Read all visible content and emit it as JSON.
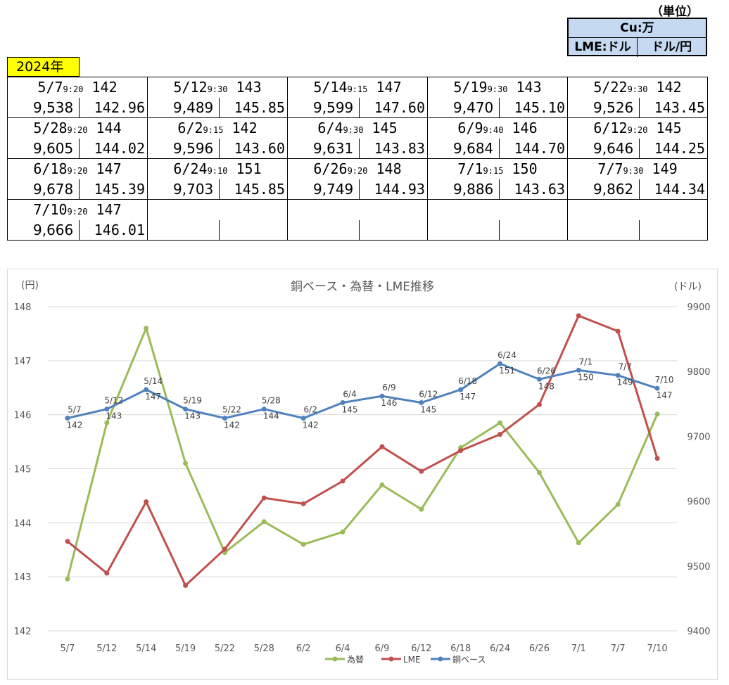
{
  "unit": {
    "label": "（単位）",
    "row1": "Cu:万",
    "lme": "LME:ドル",
    "fx": "ドル/円"
  },
  "year_badge": "2024年",
  "quotes": [
    {
      "date": "5/7",
      "time": "9:20",
      "base": "142",
      "lme": "9,538",
      "fx": "142.96"
    },
    {
      "date": "5/12",
      "time": "9:30",
      "base": "143",
      "lme": "9,489",
      "fx": "145.85"
    },
    {
      "date": "5/14",
      "time": "9:15",
      "base": "147",
      "lme": "9,599",
      "fx": "147.60"
    },
    {
      "date": "5/19",
      "time": "9:30",
      "base": "143",
      "lme": "9,470",
      "fx": "145.10"
    },
    {
      "date": "5/22",
      "time": "9:30",
      "base": "142",
      "lme": "9,526",
      "fx": "143.45"
    },
    {
      "date": "5/28",
      "time": "9:20",
      "base": "144",
      "lme": "9,605",
      "fx": "144.02"
    },
    {
      "date": "6/2",
      "time": "9:15",
      "base": "142",
      "lme": "9,596",
      "fx": "143.60"
    },
    {
      "date": "6/4",
      "time": "9:30",
      "base": "145",
      "lme": "9,631",
      "fx": "143.83"
    },
    {
      "date": "6/9",
      "time": "9:40",
      "base": "146",
      "lme": "9,684",
      "fx": "144.70"
    },
    {
      "date": "6/12",
      "time": "9:20",
      "base": "145",
      "lme": "9,646",
      "fx": "144.25"
    },
    {
      "date": "6/18",
      "time": "9:20",
      "base": "147",
      "lme": "9,678",
      "fx": "145.39"
    },
    {
      "date": "6/24",
      "time": "9:10",
      "base": "151",
      "lme": "9,703",
      "fx": "145.85"
    },
    {
      "date": "6/26",
      "time": "9:20",
      "base": "148",
      "lme": "9,749",
      "fx": "144.93"
    },
    {
      "date": "7/1",
      "time": "9:15",
      "base": "150",
      "lme": "9,886",
      "fx": "143.63"
    },
    {
      "date": "7/7",
      "time": "9:30",
      "base": "149",
      "lme": "9,862",
      "fx": "144.34"
    },
    {
      "date": "7/10",
      "time": "9:20",
      "base": "147",
      "lme": "9,666",
      "fx": "146.01"
    }
  ],
  "chart_data": {
    "type": "line",
    "title": "銅ベース・為替・LME推移",
    "left_axis_label": "(円)",
    "right_axis_label": "(ドル)",
    "categories": [
      "5/7",
      "5/12",
      "5/14",
      "5/19",
      "5/22",
      "5/28",
      "6/2",
      "6/4",
      "6/9",
      "6/12",
      "6/18",
      "6/24",
      "6/26",
      "7/1",
      "7/7",
      "7/10"
    ],
    "ylim_left": [
      142,
      148
    ],
    "yticks_left": [
      142,
      143,
      144,
      145,
      146,
      147,
      148
    ],
    "ylim_right": [
      9400,
      9900
    ],
    "yticks_right": [
      9400,
      9500,
      9600,
      9700,
      9800,
      9900
    ],
    "grid": true,
    "legend_position": "bottom",
    "series": [
      {
        "name": "為替",
        "axis": "left",
        "color": "#9bbb59",
        "values": [
          142.96,
          145.85,
          147.6,
          145.1,
          143.45,
          144.02,
          143.6,
          143.83,
          144.7,
          144.25,
          145.39,
          145.85,
          144.93,
          143.63,
          144.34,
          146.01
        ]
      },
      {
        "name": "LME",
        "axis": "right",
        "color": "#c0504d",
        "values": [
          9538,
          9489,
          9599,
          9470,
          9526,
          9605,
          9596,
          9631,
          9684,
          9646,
          9678,
          9703,
          9749,
          9886,
          9862,
          9666
        ]
      },
      {
        "name": "銅ベース",
        "axis": "right",
        "color": "#4f81bd",
        "values": [
          9728,
          9742,
          9772,
          9742,
          9728,
          9742,
          9728,
          9752,
          9762,
          9752,
          9772,
          9812,
          9788,
          9802,
          9794,
          9774
        ],
        "point_labels": [
          {
            "date": "5/7",
            "value": "142"
          },
          {
            "date": "5/12",
            "value": "143"
          },
          {
            "date": "5/14",
            "value": "147"
          },
          {
            "date": "5/19",
            "value": "143"
          },
          {
            "date": "5/22",
            "value": "142"
          },
          {
            "date": "5/28",
            "value": "144"
          },
          {
            "date": "6/2",
            "value": "142"
          },
          {
            "date": "6/4",
            "value": "145"
          },
          {
            "date": "6/9",
            "value": "146"
          },
          {
            "date": "6/12",
            "value": "145"
          },
          {
            "date": "6/18",
            "value": "147"
          },
          {
            "date": "6/24",
            "value": "151"
          },
          {
            "date": "6/26",
            "value": "148"
          },
          {
            "date": "7/1",
            "value": "150"
          },
          {
            "date": "7/7",
            "value": "149"
          },
          {
            "date": "7/10",
            "value": "147"
          }
        ]
      }
    ]
  }
}
